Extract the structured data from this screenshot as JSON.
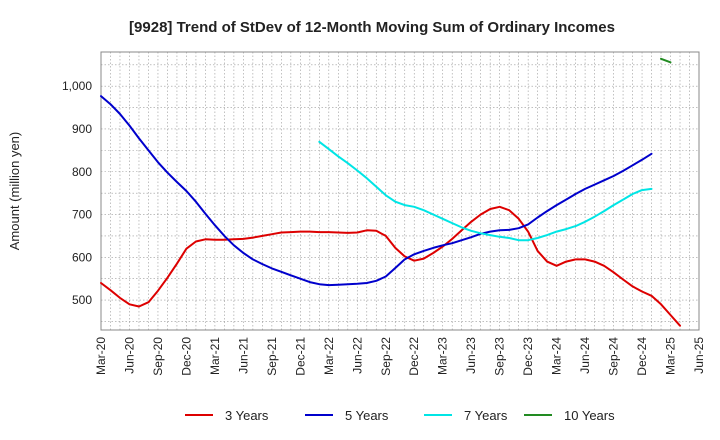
{
  "chart_data": {
    "type": "line",
    "title": "[9928]  Trend of StDev of 12-Month Moving Sum of Ordinary Incomes",
    "xlabel": "",
    "ylabel": "Amount (million yen)",
    "ylim": [
      430,
      1080
    ],
    "yticks": [
      500,
      600,
      700,
      800,
      900,
      1000
    ],
    "ytick_labels": [
      "500",
      "600",
      "700",
      "800",
      "900",
      "1,000"
    ],
    "x_start": "2020-03",
    "xticks": [
      "Mar-20",
      "Jun-20",
      "Sep-20",
      "Dec-20",
      "Mar-21",
      "Jun-21",
      "Sep-21",
      "Dec-21",
      "Mar-22",
      "Jun-22",
      "Sep-22",
      "Dec-22",
      "Mar-23",
      "Jun-23",
      "Sep-23",
      "Dec-23",
      "Mar-24",
      "Jun-24",
      "Sep-24",
      "Dec-24",
      "Mar-25",
      "Jun-25"
    ],
    "grid": true,
    "legend_position": "bottom",
    "series": [
      {
        "name": "3 Years",
        "color": "#dd0000",
        "start": "2020-03",
        "values": [
          540,
          523,
          505,
          490,
          485,
          495,
          522,
          552,
          585,
          620,
          637,
          642,
          641,
          641,
          642,
          643,
          646,
          650,
          654,
          658,
          659,
          660,
          660,
          659,
          659,
          658,
          657,
          658,
          663,
          662,
          650,
          622,
          602,
          592,
          597,
          610,
          625,
          643,
          663,
          683,
          700,
          713,
          718,
          710,
          690,
          660,
          615,
          590,
          580,
          590,
          595,
          595,
          590,
          580,
          565,
          548,
          532,
          520,
          510,
          490,
          465,
          440
        ]
      },
      {
        "name": "5 Years",
        "color": "#0000cc",
        "start": "2020-03",
        "values": [
          977,
          958,
          935,
          908,
          878,
          850,
          822,
          798,
          776,
          755,
          730,
          702,
          675,
          650,
          628,
          610,
          595,
          584,
          574,
          566,
          558,
          550,
          542,
          537,
          535,
          536,
          537,
          538,
          540,
          545,
          555,
          575,
          595,
          607,
          615,
          622,
          628,
          633,
          640,
          647,
          655,
          660,
          663,
          664,
          668,
          677,
          693,
          708,
          722,
          735,
          748,
          760,
          770,
          780,
          790,
          802,
          815,
          828,
          842
        ]
      },
      {
        "name": "7 Years",
        "color": "#00e5e5",
        "start": "2022-02",
        "values": [
          870,
          853,
          836,
          820,
          803,
          785,
          765,
          745,
          730,
          722,
          718,
          710,
          700,
          690,
          680,
          670,
          662,
          656,
          652,
          648,
          645,
          640,
          640,
          645,
          652,
          660,
          666,
          673,
          683,
          695,
          708,
          722,
          735,
          748,
          757,
          760
        ]
      },
      {
        "name": "10 Years",
        "color": "#228b22",
        "start": "2025-02",
        "values": [
          1064,
          1056
        ]
      }
    ]
  }
}
